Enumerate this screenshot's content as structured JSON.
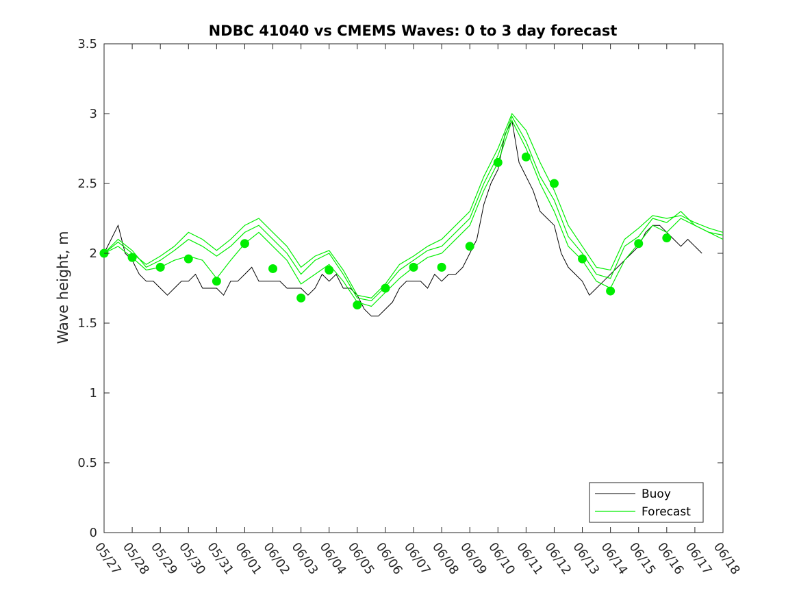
{
  "chart_data": {
    "type": "line",
    "title": "NDBC 41040 vs CMEMS Waves: 0 to 3 day forecast",
    "xlabel": "",
    "ylabel": "Wave height, m",
    "x_tick_labels": [
      "05/27",
      "05/28",
      "05/29",
      "05/30",
      "05/31",
      "06/01",
      "06/02",
      "06/03",
      "06/04",
      "06/05",
      "06/06",
      "06/07",
      "06/08",
      "06/09",
      "06/10",
      "06/11",
      "06/12",
      "06/13",
      "06/14",
      "06/15",
      "06/16",
      "06/17",
      "06/18"
    ],
    "y_tick_labels": [
      "0",
      "0.5",
      "1",
      "1.5",
      "2",
      "2.5",
      "3",
      "3.5"
    ],
    "ylim": [
      0,
      3.5
    ],
    "xlim": [
      0,
      22
    ],
    "grid": false,
    "legend_position": "bottom-right",
    "colors": {
      "buoy": "#000000",
      "forecast": "#00ee00"
    },
    "series": [
      {
        "name": "Buoy",
        "style": "line",
        "x": [
          0,
          0.25,
          0.5,
          0.75,
          1.0,
          1.25,
          1.5,
          1.75,
          2.0,
          2.25,
          2.5,
          2.75,
          3.0,
          3.25,
          3.5,
          3.75,
          4.0,
          4.25,
          4.5,
          4.75,
          5.0,
          5.25,
          5.5,
          5.75,
          6.0,
          6.25,
          6.5,
          6.75,
          7.0,
          7.25,
          7.5,
          7.75,
          8.0,
          8.25,
          8.5,
          8.75,
          9.0,
          9.25,
          9.5,
          9.75,
          10.0,
          10.25,
          10.5,
          10.75,
          11.0,
          11.25,
          11.5,
          11.75,
          12.0,
          12.25,
          12.5,
          12.75,
          13.0,
          13.25,
          13.5,
          13.75,
          14.0,
          14.25,
          14.5,
          14.75,
          15.0,
          15.25,
          15.5,
          15.75,
          16.0,
          16.25,
          16.5,
          16.75,
          17.0,
          17.25,
          17.5,
          17.75,
          18.0,
          18.25,
          18.5,
          18.75,
          19.0,
          19.25,
          19.5,
          19.75,
          20.0,
          20.25,
          20.5,
          20.75,
          21.0,
          21.25
        ],
        "values": [
          2.0,
          2.1,
          2.2,
          2.0,
          1.95,
          1.85,
          1.8,
          1.8,
          1.75,
          1.7,
          1.75,
          1.8,
          1.8,
          1.85,
          1.75,
          1.75,
          1.75,
          1.7,
          1.8,
          1.8,
          1.85,
          1.9,
          1.8,
          1.8,
          1.8,
          1.8,
          1.75,
          1.75,
          1.75,
          1.7,
          1.75,
          1.85,
          1.8,
          1.85,
          1.75,
          1.75,
          1.7,
          1.6,
          1.55,
          1.55,
          1.6,
          1.65,
          1.75,
          1.8,
          1.8,
          1.8,
          1.75,
          1.85,
          1.8,
          1.85,
          1.85,
          1.9,
          2.0,
          2.1,
          2.35,
          2.5,
          2.6,
          2.85,
          2.95,
          2.65,
          2.55,
          2.45,
          2.3,
          2.25,
          2.2,
          2.0,
          1.9,
          1.85,
          1.8,
          1.7,
          1.75,
          1.8,
          1.85,
          1.9,
          1.95,
          2.0,
          2.05,
          2.15,
          2.2,
          2.2,
          2.15,
          2.1,
          2.05,
          2.1,
          2.05,
          2.0
        ]
      },
      {
        "name": "Forecast",
        "style": "line",
        "x": [
          0,
          0.5,
          1.0,
          1.5,
          2.0,
          2.5,
          3.0,
          3.5,
          4.0,
          4.5,
          5.0,
          5.5,
          6.0,
          6.5,
          7.0,
          7.5,
          8.0,
          8.5,
          9.0,
          9.5,
          10.0,
          10.5,
          11.0,
          11.5,
          12.0,
          12.5,
          13.0,
          13.5,
          14.0,
          14.5,
          15.0,
          15.5,
          16.0,
          16.5,
          17.0,
          17.5,
          18.0,
          18.5,
          19.0,
          19.5,
          20.0,
          20.5,
          21.0,
          21.5,
          22.0
        ],
        "values": [
          2.0,
          2.05,
          1.97,
          1.88,
          1.9,
          1.95,
          1.98,
          1.95,
          1.82,
          1.95,
          2.07,
          2.15,
          2.05,
          1.95,
          1.78,
          1.85,
          1.92,
          1.8,
          1.65,
          1.62,
          1.72,
          1.82,
          1.9,
          1.97,
          2.0,
          2.1,
          2.2,
          2.45,
          2.65,
          2.95,
          2.75,
          2.5,
          2.3,
          2.05,
          1.95,
          1.8,
          1.75,
          1.95,
          2.07,
          2.2,
          2.15,
          2.25,
          2.2,
          2.15,
          2.13
        ]
      },
      {
        "name": "",
        "style": "line",
        "x": [
          0,
          0.5,
          1.0,
          1.5,
          2.0,
          2.5,
          3.0,
          3.5,
          4.0,
          4.5,
          5.0,
          5.5,
          6.0,
          6.5,
          7.0,
          7.5,
          8.0,
          8.5,
          9.0,
          9.5,
          10.0,
          10.5,
          11.0,
          11.5,
          12.0,
          12.5,
          13.0,
          13.5,
          14.0,
          14.5,
          15.0,
          15.5,
          16.0,
          16.5,
          17.0,
          17.5,
          18.0,
          18.5,
          19.0,
          19.5,
          20.0,
          20.5,
          21.0,
          21.5,
          22.0
        ],
        "values": [
          2.0,
          2.1,
          2.02,
          1.9,
          1.95,
          2.02,
          2.1,
          2.05,
          1.98,
          2.05,
          2.15,
          2.2,
          2.1,
          2.0,
          1.85,
          1.95,
          2.0,
          1.85,
          1.68,
          1.66,
          1.76,
          1.88,
          1.95,
          2.02,
          2.05,
          2.15,
          2.25,
          2.5,
          2.7,
          2.98,
          2.8,
          2.55,
          2.38,
          2.12,
          2.0,
          1.85,
          1.82,
          2.05,
          2.12,
          2.25,
          2.22,
          2.3,
          2.2,
          2.15,
          2.1
        ]
      },
      {
        "name": "",
        "style": "line",
        "x": [
          0,
          0.5,
          1.0,
          1.5,
          2.0,
          2.5,
          3.0,
          3.5,
          4.0,
          4.5,
          5.0,
          5.5,
          6.0,
          6.5,
          7.0,
          7.5,
          8.0,
          8.5,
          9.0,
          9.5,
          10.0,
          10.5,
          11.0,
          11.5,
          12.0,
          12.5,
          13.0,
          13.5,
          14.0,
          14.5,
          15.0,
          15.5,
          16.0,
          16.5,
          17.0,
          17.5,
          18.0,
          18.5,
          19.0,
          19.5,
          20.0,
          20.5,
          21.0,
          21.5,
          22.0
        ],
        "values": [
          2.0,
          2.08,
          2.0,
          1.92,
          1.98,
          2.05,
          2.15,
          2.1,
          2.02,
          2.1,
          2.2,
          2.25,
          2.15,
          2.05,
          1.9,
          1.98,
          2.02,
          1.88,
          1.7,
          1.68,
          1.78,
          1.92,
          1.98,
          2.05,
          2.1,
          2.2,
          2.3,
          2.55,
          2.75,
          3.0,
          2.88,
          2.65,
          2.45,
          2.2,
          2.05,
          1.9,
          1.88,
          2.1,
          2.18,
          2.27,
          2.25,
          2.27,
          2.22,
          2.18,
          2.15
        ]
      },
      {
        "name": "",
        "style": "markers",
        "x": [
          0,
          1,
          2,
          3,
          4,
          5,
          6,
          7,
          8,
          9,
          10,
          11,
          12,
          13,
          14,
          15,
          16,
          17,
          18,
          19,
          20
        ],
        "values": [
          2.0,
          1.97,
          1.9,
          1.96,
          1.8,
          2.07,
          1.89,
          1.68,
          1.88,
          1.63,
          1.75,
          1.9,
          1.9,
          2.05,
          2.65,
          2.69,
          2.5,
          1.96,
          1.73,
          2.07,
          2.11
        ]
      }
    ]
  },
  "legend": {
    "items": [
      {
        "label": "Buoy",
        "color": "#000000"
      },
      {
        "label": "Forecast",
        "color": "#00ee00"
      }
    ]
  }
}
